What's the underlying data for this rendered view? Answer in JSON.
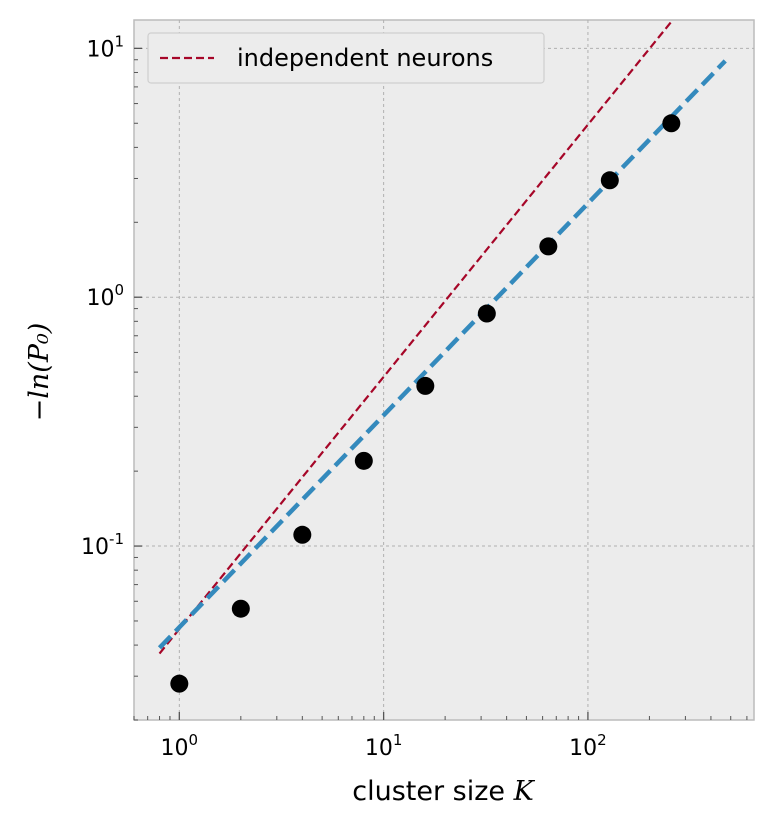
{
  "chart_data": {
    "type": "scatter",
    "xscale": "log",
    "yscale": "log",
    "xlim": [
      0.6,
      650
    ],
    "ylim": [
      0.02,
      13
    ],
    "grid": true,
    "xlabel": {
      "text": "cluster size ",
      "math": "K"
    },
    "ylabel": "−ln(P₀)",
    "xticks": [
      {
        "value": 1,
        "base": "10",
        "exp": "0"
      },
      {
        "value": 10,
        "base": "10",
        "exp": "1"
      },
      {
        "value": 100,
        "base": "10",
        "exp": "2"
      }
    ],
    "yticks": [
      {
        "value": 0.1,
        "base": "10",
        "exp": "-1"
      },
      {
        "value": 1,
        "base": "10",
        "exp": "0"
      },
      {
        "value": 10,
        "base": "10",
        "exp": "1"
      }
    ],
    "points": {
      "color": "#000000",
      "x": [
        1,
        2,
        4,
        8,
        16,
        32,
        64,
        128,
        256
      ],
      "y": [
        0.028,
        0.056,
        0.111,
        0.22,
        0.44,
        0.86,
        1.6,
        2.95,
        5.0
      ]
    },
    "lines": [
      {
        "name": "independent neurons",
        "color": "#a60628",
        "style": "dashed-thin",
        "x": [
          0.8,
          260
        ],
        "y": [
          0.037,
          13.0
        ]
      },
      {
        "name": "",
        "color": "#348abd",
        "style": "dashed-thick",
        "x": [
          0.8,
          470
        ],
        "y": [
          0.039,
          8.9
        ]
      }
    ],
    "legend": {
      "position": "top-left",
      "entries": [
        "independent neurons"
      ]
    }
  }
}
